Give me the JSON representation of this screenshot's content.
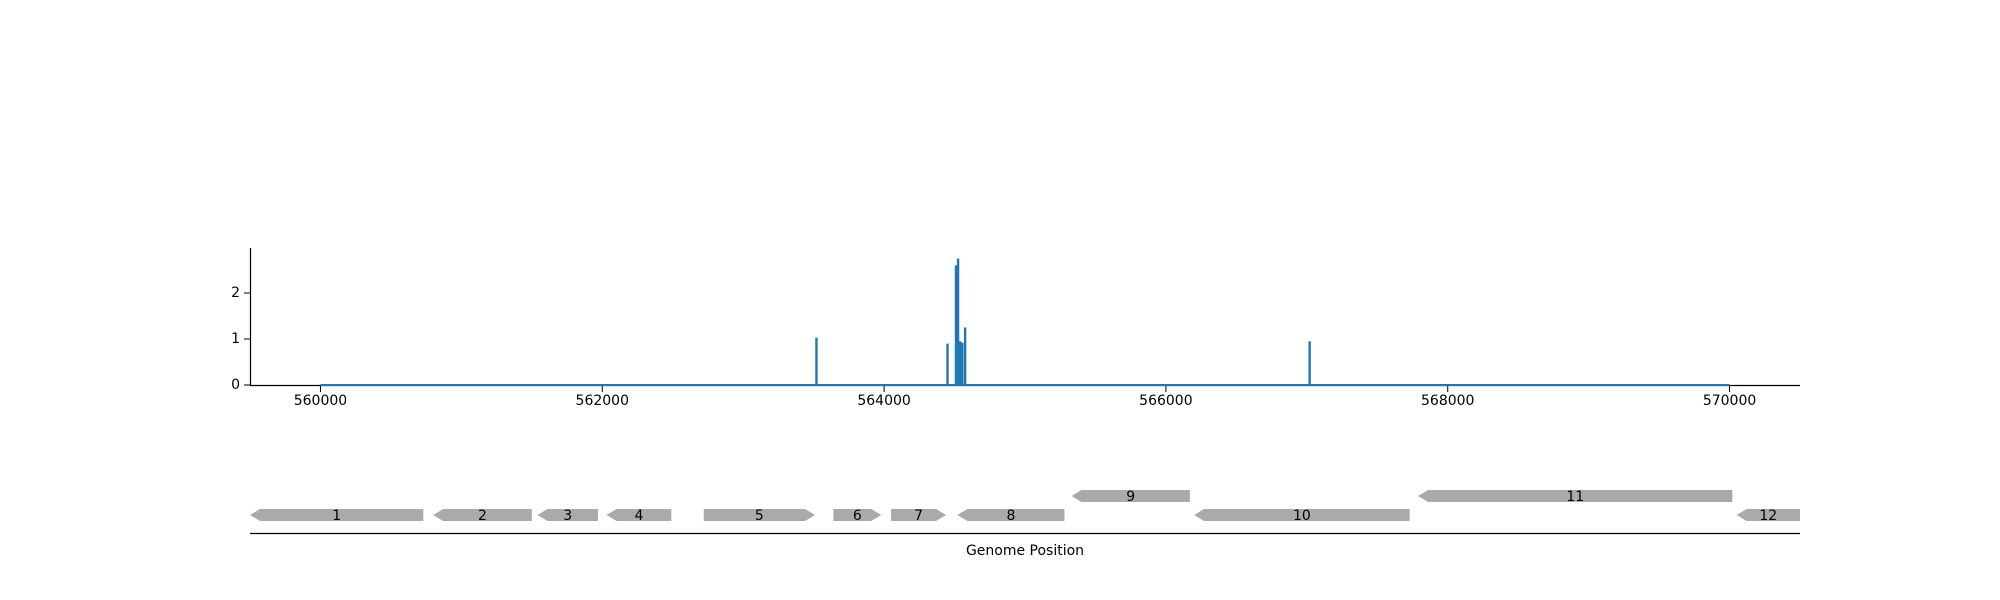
{
  "chart_data": [
    {
      "type": "line",
      "title": "",
      "xlabel": "",
      "ylabel": "",
      "xlim": [
        559500,
        570500
      ],
      "ylim": [
        0,
        3
      ],
      "xticks": [
        560000,
        562000,
        564000,
        566000,
        568000,
        570000
      ],
      "xtick_labels": [
        "560000",
        "562000",
        "564000",
        "566000",
        "568000",
        "570000"
      ],
      "yticks": [
        0,
        1,
        2
      ],
      "ytick_labels": [
        "0",
        "1",
        "2"
      ],
      "grid": false,
      "legend": "none",
      "color": "#1f77b4",
      "series": [
        {
          "baseline": [
            560000,
            570000
          ],
          "spikes": [
            {
              "x": 563520,
              "y": 1.03
            },
            {
              "x": 564450,
              "y": 0.9
            },
            {
              "x": 564510,
              "y": 2.6
            },
            {
              "x": 564525,
              "y": 2.75
            },
            {
              "x": 564540,
              "y": 0.95
            },
            {
              "x": 564555,
              "y": 0.92
            },
            {
              "x": 564575,
              "y": 1.25
            },
            {
              "x": 567020,
              "y": 0.95
            }
          ]
        }
      ]
    },
    {
      "type": "gene_track",
      "xlabel": "Genome Position",
      "color": "#aaaaaa",
      "genes": [
        {
          "label": "1",
          "start": 559500,
          "end": 560730,
          "strand": "-",
          "row": 0
        },
        {
          "label": "2",
          "start": 560800,
          "end": 561500,
          "strand": "-",
          "row": 0
        },
        {
          "label": "3",
          "start": 561540,
          "end": 561970,
          "strand": "-",
          "row": 0
        },
        {
          "label": "4",
          "start": 562030,
          "end": 562490,
          "strand": "-",
          "row": 0
        },
        {
          "label": "5",
          "start": 562720,
          "end": 563510,
          "strand": "+",
          "row": 0
        },
        {
          "label": "6",
          "start": 563640,
          "end": 563980,
          "strand": "+",
          "row": 0
        },
        {
          "label": "7",
          "start": 564050,
          "end": 564440,
          "strand": "+",
          "row": 0
        },
        {
          "label": "8",
          "start": 564520,
          "end": 565280,
          "strand": "-",
          "row": 0
        },
        {
          "label": "9",
          "start": 565330,
          "end": 566170,
          "strand": "-",
          "row": 1
        },
        {
          "label": "10",
          "start": 566200,
          "end": 567730,
          "strand": "-",
          "row": 0
        },
        {
          "label": "11",
          "start": 567790,
          "end": 570020,
          "strand": "-",
          "row": 1
        },
        {
          "label": "12",
          "start": 570050,
          "end": 570500,
          "strand": "-",
          "row": 0
        }
      ]
    }
  ]
}
